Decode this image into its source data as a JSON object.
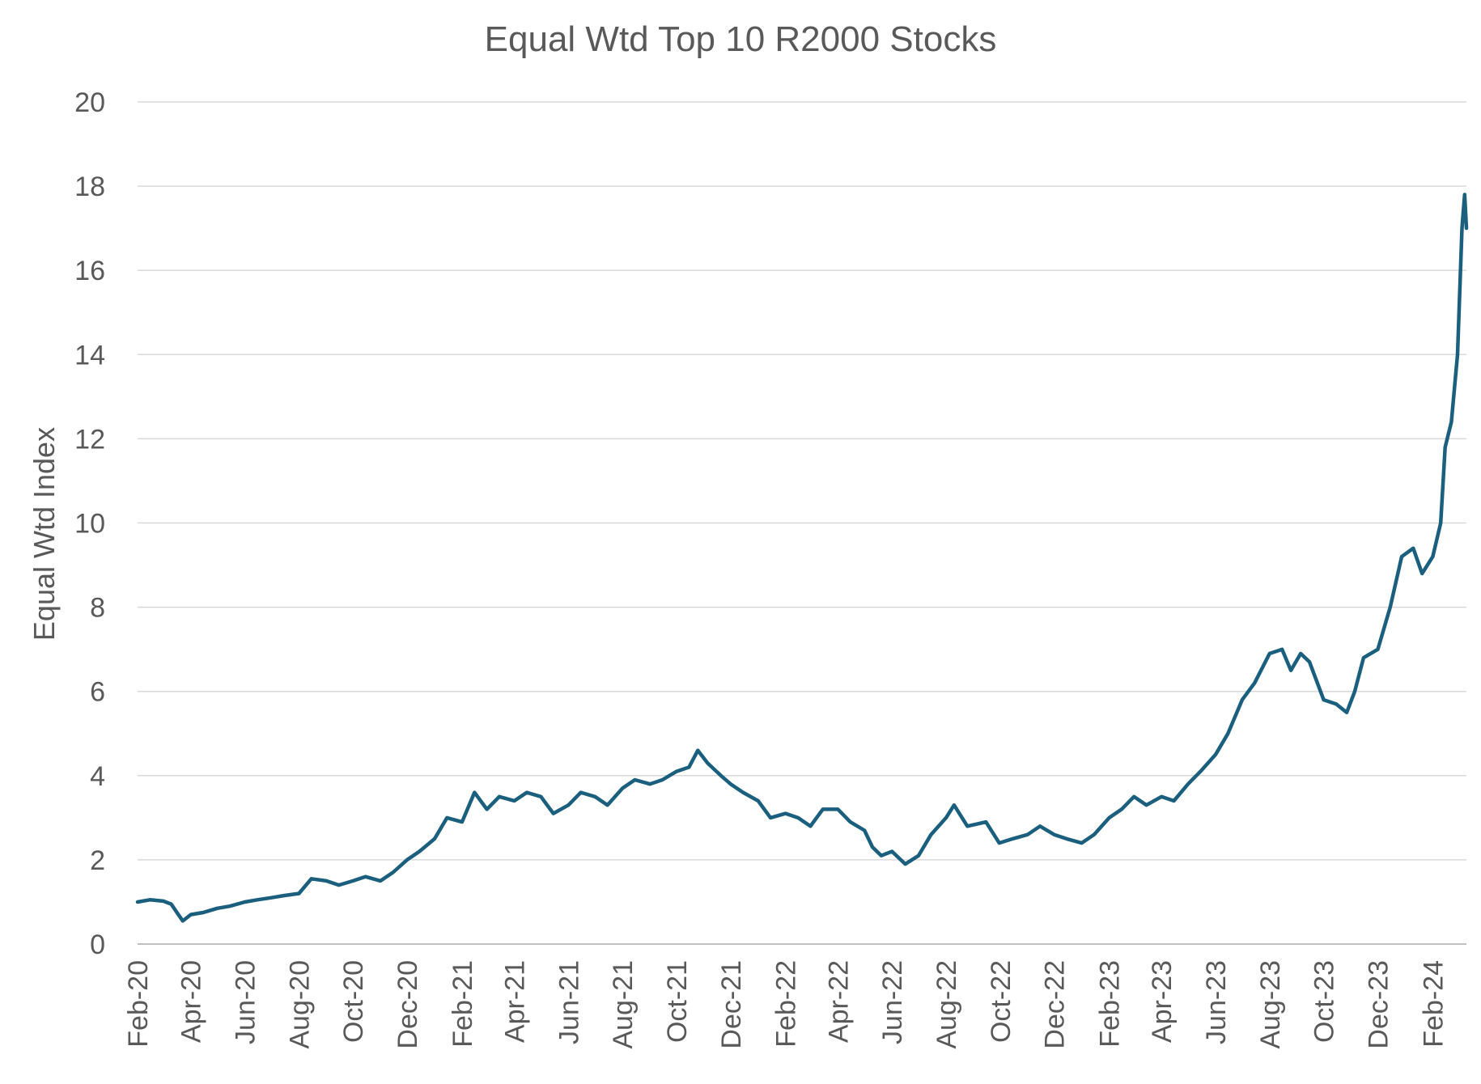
{
  "chart_data": {
    "type": "line",
    "title": "Equal Wtd Top 10 R2000 Stocks",
    "ylabel": "Equal Wtd Index",
    "xlabel": "",
    "ylim": [
      0,
      20
    ],
    "yticks": [
      0,
      2,
      4,
      6,
      8,
      10,
      12,
      14,
      16,
      18,
      20
    ],
    "xticks": [
      "Feb-20",
      "Apr-20",
      "Jun-20",
      "Aug-20",
      "Oct-20",
      "Dec-20",
      "Feb-21",
      "Apr-21",
      "Jun-21",
      "Aug-21",
      "Oct-21",
      "Dec-21",
      "Feb-22",
      "Apr-22",
      "Jun-22",
      "Aug-22",
      "Oct-22",
      "Dec-22",
      "Feb-23",
      "Apr-23",
      "Jun-23",
      "Aug-23",
      "Oct-23",
      "Dec-23",
      "Feb-24"
    ],
    "grid": true,
    "legend": "none",
    "line_color": "#1b5f7e",
    "series": [
      {
        "points": [
          [
            "2020-02-01",
            1.0
          ],
          [
            "2020-02-15",
            1.05
          ],
          [
            "2020-03-01",
            1.02
          ],
          [
            "2020-03-10",
            0.95
          ],
          [
            "2020-03-18",
            0.7
          ],
          [
            "2020-03-23",
            0.55
          ],
          [
            "2020-04-01",
            0.7
          ],
          [
            "2020-04-15",
            0.75
          ],
          [
            "2020-05-01",
            0.85
          ],
          [
            "2020-05-15",
            0.9
          ],
          [
            "2020-06-01",
            1.0
          ],
          [
            "2020-06-15",
            1.05
          ],
          [
            "2020-07-01",
            1.1
          ],
          [
            "2020-07-15",
            1.15
          ],
          [
            "2020-08-01",
            1.2
          ],
          [
            "2020-08-15",
            1.55
          ],
          [
            "2020-09-01",
            1.5
          ],
          [
            "2020-09-15",
            1.4
          ],
          [
            "2020-10-01",
            1.5
          ],
          [
            "2020-10-15",
            1.6
          ],
          [
            "2020-11-01",
            1.5
          ],
          [
            "2020-11-15",
            1.7
          ],
          [
            "2020-12-01",
            2.0
          ],
          [
            "2020-12-15",
            2.2
          ],
          [
            "2021-01-01",
            2.5
          ],
          [
            "2021-01-15",
            3.0
          ],
          [
            "2021-02-01",
            2.9
          ],
          [
            "2021-02-15",
            3.6
          ],
          [
            "2021-03-01",
            3.2
          ],
          [
            "2021-03-15",
            3.5
          ],
          [
            "2021-04-01",
            3.4
          ],
          [
            "2021-04-15",
            3.6
          ],
          [
            "2021-05-01",
            3.5
          ],
          [
            "2021-05-15",
            3.1
          ],
          [
            "2021-06-01",
            3.3
          ],
          [
            "2021-06-15",
            3.6
          ],
          [
            "2021-07-01",
            3.5
          ],
          [
            "2021-07-15",
            3.3
          ],
          [
            "2021-08-01",
            3.7
          ],
          [
            "2021-08-15",
            3.9
          ],
          [
            "2021-09-01",
            3.8
          ],
          [
            "2021-09-15",
            3.9
          ],
          [
            "2021-10-01",
            4.1
          ],
          [
            "2021-10-15",
            4.2
          ],
          [
            "2021-10-25",
            4.6
          ],
          [
            "2021-11-05",
            4.3
          ],
          [
            "2021-11-20",
            4.0
          ],
          [
            "2021-12-01",
            3.8
          ],
          [
            "2021-12-15",
            3.6
          ],
          [
            "2022-01-01",
            3.4
          ],
          [
            "2022-01-15",
            3.0
          ],
          [
            "2022-02-01",
            3.1
          ],
          [
            "2022-02-15",
            3.0
          ],
          [
            "2022-03-01",
            2.8
          ],
          [
            "2022-03-15",
            3.2
          ],
          [
            "2022-04-01",
            3.2
          ],
          [
            "2022-04-15",
            2.9
          ],
          [
            "2022-05-01",
            2.7
          ],
          [
            "2022-05-10",
            2.3
          ],
          [
            "2022-05-20",
            2.1
          ],
          [
            "2022-06-01",
            2.2
          ],
          [
            "2022-06-16",
            1.9
          ],
          [
            "2022-07-01",
            2.1
          ],
          [
            "2022-07-15",
            2.6
          ],
          [
            "2022-08-01",
            3.0
          ],
          [
            "2022-08-10",
            3.3
          ],
          [
            "2022-08-25",
            2.8
          ],
          [
            "2022-09-15",
            2.9
          ],
          [
            "2022-09-30",
            2.4
          ],
          [
            "2022-10-15",
            2.5
          ],
          [
            "2022-11-01",
            2.6
          ],
          [
            "2022-11-15",
            2.8
          ],
          [
            "2022-12-01",
            2.6
          ],
          [
            "2022-12-15",
            2.5
          ],
          [
            "2023-01-01",
            2.4
          ],
          [
            "2023-01-15",
            2.6
          ],
          [
            "2023-02-01",
            3.0
          ],
          [
            "2023-02-15",
            3.2
          ],
          [
            "2023-03-01",
            3.5
          ],
          [
            "2023-03-15",
            3.3
          ],
          [
            "2023-04-01",
            3.5
          ],
          [
            "2023-04-15",
            3.4
          ],
          [
            "2023-05-01",
            3.8
          ],
          [
            "2023-05-15",
            4.1
          ],
          [
            "2023-06-01",
            4.5
          ],
          [
            "2023-06-15",
            5.0
          ],
          [
            "2023-07-01",
            5.8
          ],
          [
            "2023-07-15",
            6.2
          ],
          [
            "2023-08-01",
            6.9
          ],
          [
            "2023-08-15",
            7.0
          ],
          [
            "2023-08-25",
            6.5
          ],
          [
            "2023-09-05",
            6.9
          ],
          [
            "2023-09-15",
            6.7
          ],
          [
            "2023-10-01",
            5.8
          ],
          [
            "2023-10-15",
            5.7
          ],
          [
            "2023-10-27",
            5.5
          ],
          [
            "2023-11-05",
            6.0
          ],
          [
            "2023-11-15",
            6.8
          ],
          [
            "2023-12-01",
            7.0
          ],
          [
            "2023-12-15",
            8.0
          ],
          [
            "2023-12-28",
            9.2
          ],
          [
            "2024-01-10",
            9.4
          ],
          [
            "2024-01-20",
            8.8
          ],
          [
            "2024-02-01",
            9.2
          ],
          [
            "2024-02-10",
            10.0
          ],
          [
            "2024-02-15",
            11.8
          ],
          [
            "2024-02-22",
            12.4
          ],
          [
            "2024-02-29",
            14.0
          ],
          [
            "2024-03-05",
            17.0
          ],
          [
            "2024-03-08",
            17.8
          ],
          [
            "2024-03-10",
            17.0
          ]
        ]
      }
    ]
  }
}
